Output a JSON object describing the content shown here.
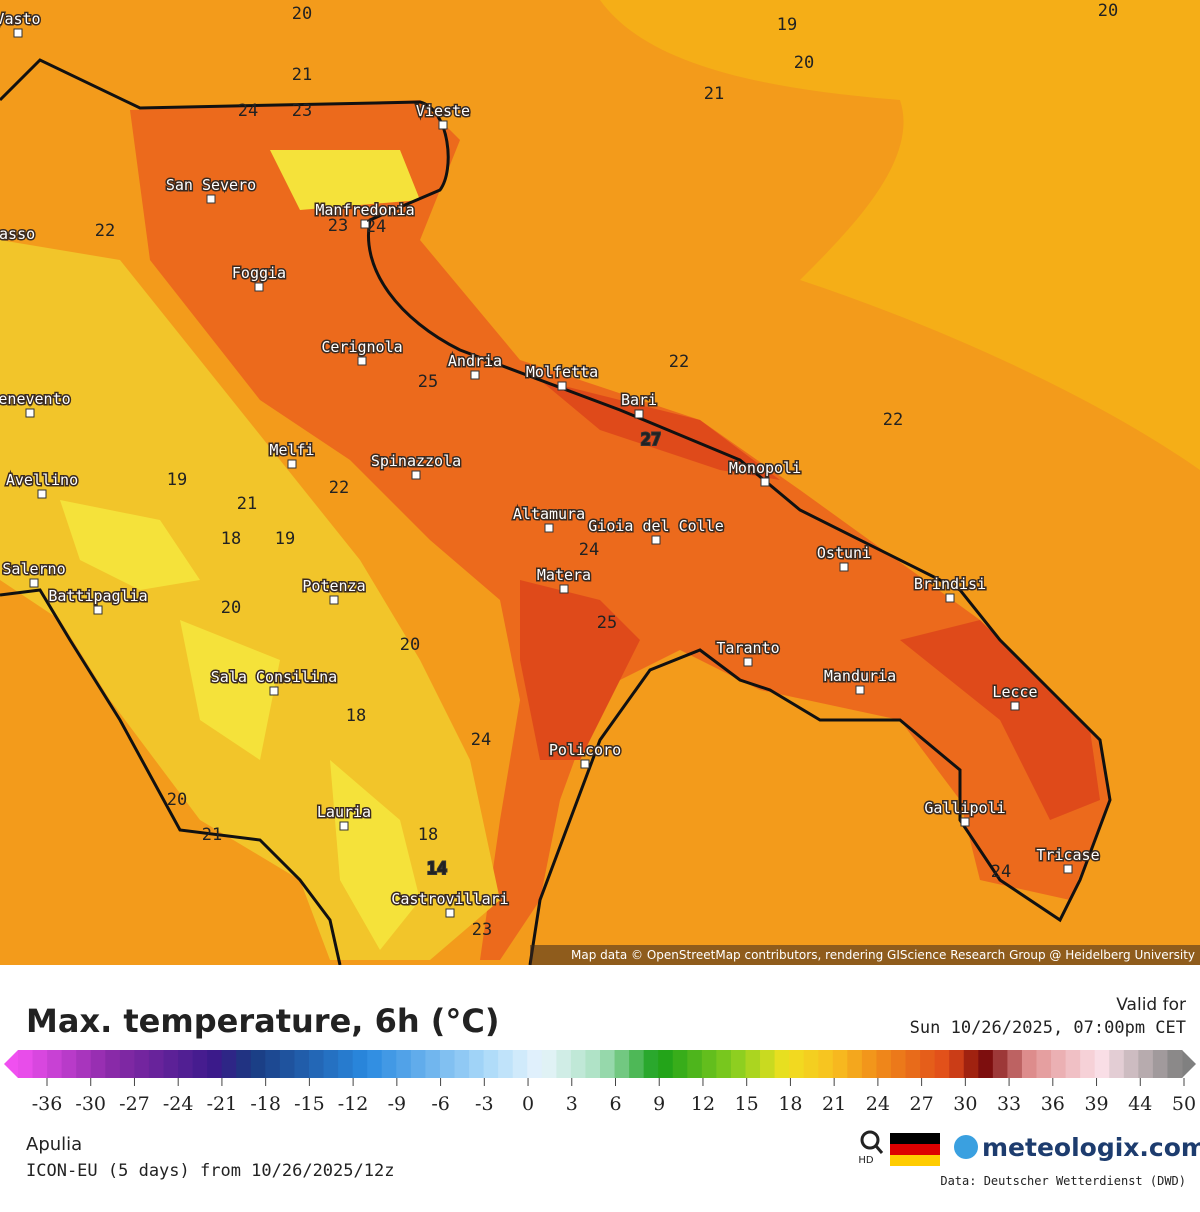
{
  "map": {
    "cities": [
      "Vasto",
      "Vieste",
      "San Severo",
      "Manfredonia",
      "Campobasso",
      "Foggia",
      "Cerignola",
      "Andria",
      "Molfetta",
      "Bari",
      "Benevento",
      "Melfi",
      "Spinazzola",
      "Monopoli",
      "Avellino",
      "Altamura",
      "Gioia del Colle",
      "Ostuni",
      "Salerno",
      "Matera",
      "Brindisi",
      "Battipaglia",
      "Potenza",
      "Taranto",
      "Sala Consilina",
      "Manduria",
      "Lecce",
      "Policoro",
      "Lauria",
      "Gallipoli",
      "Tricase",
      "Castrovillari"
    ],
    "contour_labels": [
      20,
      19,
      20,
      20,
      21,
      21,
      24,
      23,
      22,
      23,
      24,
      22,
      25,
      22,
      27,
      19,
      22,
      21,
      18,
      19,
      24,
      20,
      25,
      20,
      18,
      24,
      20,
      21,
      18,
      14,
      23,
      24
    ],
    "attribution": "Map data © OpenStreetMap contributors, rendering GIScience Research Group @ Heidelberg University"
  },
  "legend": {
    "title": "Max. temperature, 6h (°C)",
    "valid_label": "Valid for",
    "valid_time": "Sun 10/26/2025, 07:00pm CET",
    "ticks": [
      -36,
      -30,
      -27,
      -24,
      -21,
      -18,
      -15,
      -12,
      -9,
      -6,
      -3,
      0,
      3,
      6,
      9,
      12,
      15,
      18,
      21,
      24,
      27,
      30,
      33,
      36,
      39,
      44,
      50
    ],
    "region": "Apulia",
    "model": "ICON-EU (5 days) from 10/26/2025/12z",
    "hd": "HD",
    "brand": "meteologix.com",
    "source": "Data: Deutscher Wetterdienst (DWD)"
  }
}
